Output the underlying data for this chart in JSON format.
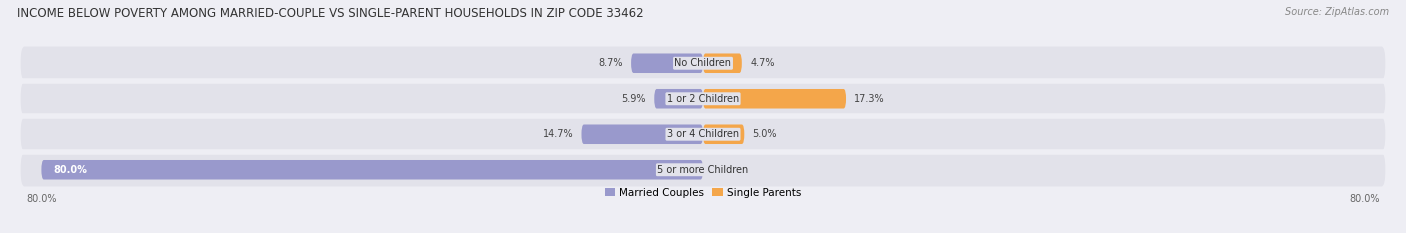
{
  "title": "INCOME BELOW POVERTY AMONG MARRIED-COUPLE VS SINGLE-PARENT HOUSEHOLDS IN ZIP CODE 33462",
  "source": "Source: ZipAtlas.com",
  "categories": [
    "No Children",
    "1 or 2 Children",
    "3 or 4 Children",
    "5 or more Children"
  ],
  "married_values": [
    8.7,
    5.9,
    14.7,
    80.0
  ],
  "single_values": [
    4.7,
    17.3,
    5.0,
    0.0
  ],
  "married_color": "#9999cc",
  "single_color": "#f4a64a",
  "axis_max": 80.0,
  "bg_color": "#eeeef4",
  "bar_bg_color": "#e2e2ea",
  "title_fontsize": 8.5,
  "label_fontsize": 7.0,
  "cat_fontsize": 7.0,
  "legend_fontsize": 7.5,
  "source_fontsize": 7.0
}
